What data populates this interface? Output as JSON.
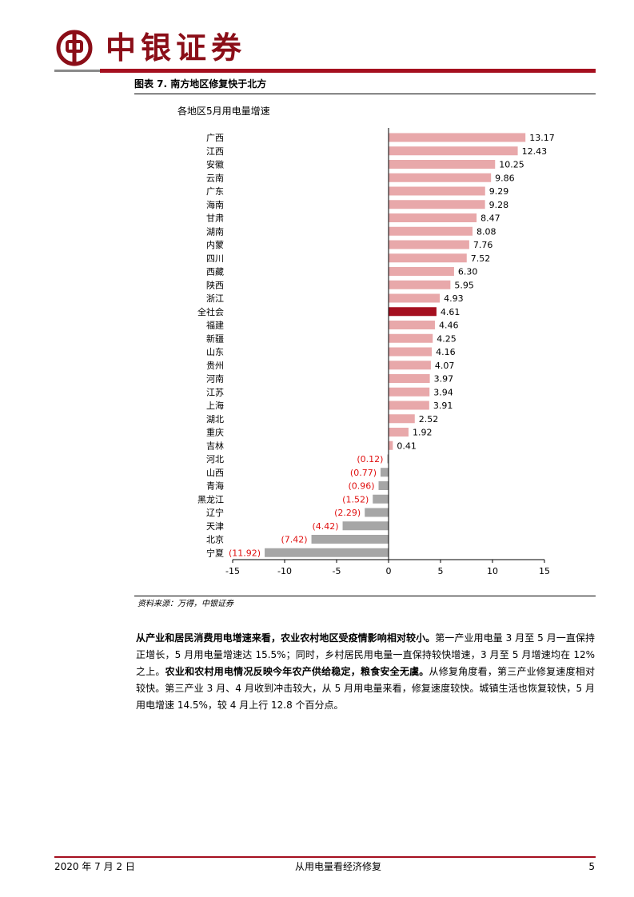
{
  "header": {
    "brand": "中银证券",
    "accent_color": "#a50f1f",
    "logo_icon": "bank-of-china-logo-icon"
  },
  "figure": {
    "title": "图表 7. 南方地区修复快于北方",
    "subtitle": "各地区5月用电量增速"
  },
  "chart_data": {
    "type": "bar",
    "orientation": "horizontal",
    "title": "各地区5月用电量增速",
    "xlabel": "",
    "ylabel": "",
    "xlim": [
      -15,
      15
    ],
    "xticks": [
      -15,
      -10,
      -5,
      0,
      5,
      10,
      15
    ],
    "categories": [
      "广西",
      "江西",
      "安徽",
      "云南",
      "广东",
      "海南",
      "甘肃",
      "湖南",
      "内蒙",
      "四川",
      "西藏",
      "陕西",
      "浙江",
      "全社会",
      "福建",
      "新疆",
      "山东",
      "贵州",
      "河南",
      "江苏",
      "上海",
      "湖北",
      "重庆",
      "吉林",
      "河北",
      "山西",
      "青海",
      "黑龙江",
      "辽宁",
      "天津",
      "北京",
      "宁夏"
    ],
    "values": [
      13.17,
      12.43,
      10.25,
      9.86,
      9.29,
      9.28,
      8.47,
      8.08,
      7.76,
      7.52,
      6.3,
      5.95,
      4.93,
      4.61,
      4.46,
      4.25,
      4.16,
      4.07,
      3.97,
      3.94,
      3.91,
      2.52,
      1.92,
      0.41,
      -0.12,
      -0.77,
      -0.96,
      -1.52,
      -2.29,
      -4.42,
      -7.42,
      -11.92
    ],
    "value_labels": [
      "13.17",
      "12.43",
      "10.25",
      "9.86",
      "9.29",
      "9.28",
      "8.47",
      "8.08",
      "7.76",
      "7.52",
      "6.30",
      "5.95",
      "4.93",
      "4.61",
      "4.46",
      "4.25",
      "4.16",
      "4.07",
      "3.97",
      "3.94",
      "3.91",
      "2.52",
      "1.92",
      "0.41",
      "(0.12)",
      "(0.77)",
      "(0.96)",
      "(1.52)",
      "(2.29)",
      "(4.42)",
      "(7.42)",
      "(11.92)"
    ],
    "highlight": "全社会",
    "colors": {
      "positive": "#e8a8aa",
      "highlight": "#a50f1f",
      "negative": "#a6a6a6",
      "negative_label": "#e01010",
      "positive_label": "#000000"
    },
    "grid": false,
    "legend": "none"
  },
  "source": "资料来源：万得，中银证券",
  "body": {
    "lead_bold": "从产业和居民消费用电增速来看，农业农村地区受疫情影响相对较小。",
    "text1": "第一产业用电量 3 月至 5 月一直保持正增长，5 月用电量增速达 15.5%；同时，乡村居民用电量一直保持较快增速，3 月至 5 月增速均在 12%之上。",
    "mid_bold": "农业和农村用电情况反映今年农产供给稳定，粮食安全无虞。",
    "text2": "从修复角度看，第三产业修复速度相对较快。第三产业 3 月、4 月收到冲击较大，从 5 月用电量来看，修复速度较快。城镇生活也恢复较快，5 月用电增速 14.5%，较 4 月上行 12.8 个百分点。"
  },
  "footer": {
    "date": "2020 年 7 月 2 日",
    "title": "从用电量看经济修复",
    "page": "5"
  }
}
